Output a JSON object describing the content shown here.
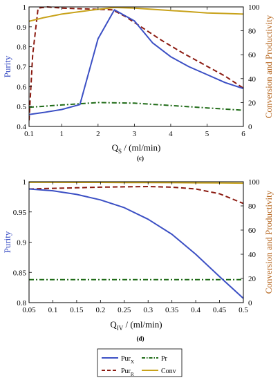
{
  "colors": {
    "purx": "#3b4fc4",
    "purr": "#8b1a10",
    "pr": "#1f6b17",
    "conv": "#c8a21a",
    "left_axis": "#3b4fc4",
    "right_axis": "#b5651d"
  },
  "legend": {
    "items": [
      {
        "key": "purx",
        "base": "Pur",
        "subscript": "X",
        "style": "solid"
      },
      {
        "key": "pr",
        "base": "Pr",
        "subscript": "",
        "style": "dashdot"
      },
      {
        "key": "purr",
        "base": "Pur",
        "subscript": "R",
        "style": "dashed"
      },
      {
        "key": "conv",
        "base": "Conv",
        "subscript": "",
        "style": "solid"
      }
    ]
  },
  "chart_data": [
    {
      "type": "line",
      "panel_label": "(c)",
      "xlabel": {
        "base": "Q",
        "subscript": "S",
        "rest": " / (ml/min)"
      },
      "ylabel_left": "Purity",
      "ylabel_right": "Conversion and Productivity",
      "xlim": [
        0.1,
        6
      ],
      "ylim_left": [
        0.4,
        1
      ],
      "ylim_right": [
        0,
        100
      ],
      "x_ticks": [
        0.1,
        1,
        2,
        3,
        4,
        5,
        6
      ],
      "y_ticks_left": [
        0.4,
        0.5,
        0.6,
        0.7,
        0.8,
        0.9,
        1
      ],
      "y_ticks_right": [
        0,
        20,
        40,
        60,
        80,
        100
      ],
      "series": [
        {
          "key": "purx",
          "axis": "left",
          "style": "solid",
          "x": [
            0.1,
            0.5,
            1,
            1.5,
            2,
            2.45,
            3,
            3.5,
            4,
            4.5,
            5,
            5.5,
            6
          ],
          "y": [
            0.46,
            0.47,
            0.485,
            0.51,
            0.84,
            0.985,
            0.93,
            0.82,
            0.75,
            0.7,
            0.66,
            0.62,
            0.59
          ]
        },
        {
          "key": "purr",
          "axis": "right",
          "style": "dashed",
          "x": [
            0.1,
            0.2,
            0.35,
            0.6,
            1,
            1.5,
            2,
            2.4,
            2.75,
            3.2,
            3.75,
            4.3,
            4.9,
            5.5,
            6
          ],
          "y": [
            5,
            60,
            99,
            100,
            99,
            98.5,
            98,
            97.5,
            92,
            83,
            72,
            62,
            52,
            42,
            32
          ]
        },
        {
          "key": "pr",
          "axis": "right",
          "style": "dashdot",
          "x": [
            0.1,
            1,
            2,
            3,
            4,
            5,
            6
          ],
          "y": [
            16,
            18,
            20,
            19.5,
            17.5,
            15.5,
            13.5
          ]
        },
        {
          "key": "conv",
          "axis": "right",
          "style": "solid",
          "x": [
            0.1,
            0.5,
            1,
            1.5,
            2,
            2.45,
            3,
            3.5,
            4,
            4.5,
            5,
            5.5,
            6
          ],
          "y": [
            88,
            91,
            94,
            96,
            98,
            99.5,
            99,
            98,
            97,
            96,
            95,
            94.5,
            94
          ]
        }
      ]
    },
    {
      "type": "line",
      "panel_label": "(d)",
      "xlabel": {
        "base": "Q",
        "subscript": "IV",
        "rest": " / (ml/min)"
      },
      "ylabel_left": "Purity",
      "ylabel_right": "Conversion and Productivity",
      "xlim": [
        0.05,
        0.5
      ],
      "ylim_left": [
        0.8,
        1
      ],
      "ylim_right": [
        0,
        100
      ],
      "x_ticks": [
        0.05,
        0.1,
        0.15,
        0.2,
        0.25,
        0.3,
        0.35,
        0.4,
        0.45,
        0.5
      ],
      "y_ticks_left": [
        0.8,
        0.85,
        0.9,
        0.95,
        1
      ],
      "y_ticks_right": [
        0,
        20,
        40,
        60,
        80,
        100
      ],
      "series": [
        {
          "key": "purx",
          "axis": "left",
          "style": "solid",
          "x": [
            0.05,
            0.1,
            0.15,
            0.2,
            0.25,
            0.3,
            0.35,
            0.4,
            0.45,
            0.5
          ],
          "y": [
            0.988,
            0.985,
            0.979,
            0.97,
            0.957,
            0.938,
            0.913,
            0.88,
            0.843,
            0.807
          ]
        },
        {
          "key": "purr",
          "axis": "right",
          "style": "dashed",
          "x": [
            0.05,
            0.1,
            0.15,
            0.2,
            0.25,
            0.3,
            0.35,
            0.4,
            0.45,
            0.5
          ],
          "y": [
            94,
            94.5,
            95,
            95.5,
            95.8,
            96,
            95.5,
            94,
            90,
            82
          ]
        },
        {
          "key": "pr",
          "axis": "right",
          "style": "dashdot",
          "x": [
            0.05,
            0.1,
            0.15,
            0.2,
            0.25,
            0.3,
            0.35,
            0.4,
            0.45,
            0.5
          ],
          "y": [
            19,
            19,
            19,
            19,
            19,
            19,
            19,
            19,
            19,
            19
          ]
        },
        {
          "key": "conv",
          "axis": "right",
          "style": "solid",
          "x": [
            0.05,
            0.1,
            0.15,
            0.2,
            0.25,
            0.3,
            0.35,
            0.4,
            0.45,
            0.5
          ],
          "y": [
            99.5,
            99.5,
            99.4,
            99.4,
            99.3,
            99.3,
            99.2,
            99.1,
            99,
            98.8
          ]
        }
      ]
    }
  ]
}
